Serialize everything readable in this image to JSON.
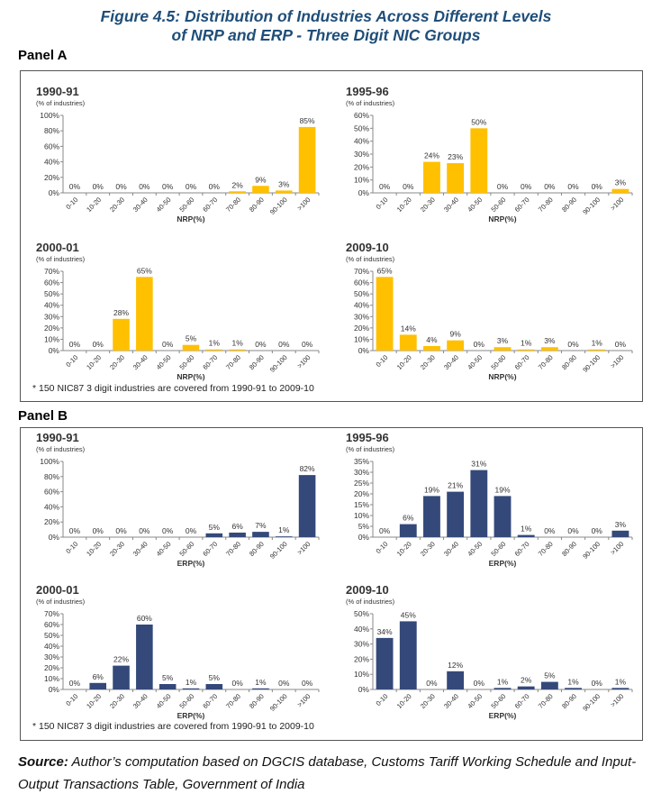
{
  "figure": {
    "title_line1": "Figure 4.5: Distribution of Industries Across Different Levels",
    "title_line2": "of NRP and ERP - Three Digit NIC Groups"
  },
  "panels": [
    {
      "label": "Panel A",
      "footnote": "* 150 NIC87 3 digit industries are covered from 1990-91 to 2009-10"
    },
    {
      "label": "Panel B",
      "footnote": "* 150 NIC87 3 digit industries are covered from 1990-91 to 2009-10"
    }
  ],
  "source": {
    "label": "Source:",
    "text": "Author’s computation based on DGCIS database, Customs Tariff Working Schedule and Input-Output Transactions Table, Government of India"
  },
  "colors": {
    "nrp_bar": "#ffc000",
    "erp_bar": "#34497a",
    "axis": "#888888"
  },
  "chart_data": [
    {
      "type": "bar",
      "panel": "A",
      "title": "1990-91",
      "subtitle": "(% of industries)",
      "xlabel": "NRP(%)",
      "categories": [
        "0-10",
        "10-20",
        "20-30",
        "30-40",
        "40-50",
        "50-60",
        "60-70",
        "70-80",
        "80-90",
        "90-100",
        ">100"
      ],
      "values": [
        0,
        0,
        0,
        0,
        0,
        0,
        0,
        2,
        9,
        3,
        85
      ],
      "data_labels": [
        "0%",
        "0%",
        "0%",
        "0%",
        "0%",
        "0%",
        "0%",
        "2%",
        "9%",
        "3%",
        "85%"
      ],
      "ylim": [
        0,
        100
      ],
      "yticks": [
        "0%",
        "20%",
        "40%",
        "60%",
        "80%",
        "100%"
      ]
    },
    {
      "type": "bar",
      "panel": "A",
      "title": "1995-96",
      "subtitle": "(% of industries)",
      "xlabel": "NRP(%)",
      "categories": [
        "0-10",
        "10-20",
        "20-30",
        "30-40",
        "40-50",
        "50-60",
        "60-70",
        "70-80",
        "80-90",
        "90-100",
        ">100"
      ],
      "values": [
        0,
        0,
        24,
        23,
        50,
        0,
        0,
        0,
        0,
        0,
        3
      ],
      "data_labels": [
        "0%",
        "0%",
        "24%",
        "23%",
        "50%",
        "0%",
        "0%",
        "0%",
        "0%",
        "0%",
        "3%"
      ],
      "ylim": [
        0,
        60
      ],
      "yticks": [
        "0%",
        "10%",
        "20%",
        "30%",
        "40%",
        "50%",
        "60%"
      ]
    },
    {
      "type": "bar",
      "panel": "A",
      "title": "2000-01",
      "subtitle": "(% of industries)",
      "xlabel": "NRP(%)",
      "categories": [
        "0-10",
        "10-20",
        "20-30",
        "30-40",
        "40-50",
        "50-60",
        "60-70",
        "70-80",
        "80-90",
        "90-100",
        ">100"
      ],
      "values": [
        0,
        0,
        28,
        65,
        0,
        5,
        1,
        1,
        0,
        0,
        0
      ],
      "data_labels": [
        "0%",
        "0%",
        "28%",
        "65%",
        "0%",
        "5%",
        "1%",
        "1%",
        "0%",
        "0%",
        "0%"
      ],
      "ylim": [
        0,
        70
      ],
      "yticks": [
        "0%",
        "10%",
        "20%",
        "30%",
        "40%",
        "50%",
        "60%",
        "70%"
      ]
    },
    {
      "type": "bar",
      "panel": "A",
      "title": "2009-10",
      "subtitle": "(% of industries)",
      "xlabel": "NRP(%)",
      "categories": [
        "0-10",
        "10-20",
        "20-30",
        "30-40",
        "40-50",
        "50-60",
        "60-70",
        "70-80",
        "80-90",
        "90-100",
        ">100"
      ],
      "values": [
        65,
        14,
        4,
        9,
        0,
        3,
        1,
        3,
        0,
        1,
        0
      ],
      "data_labels": [
        "65%",
        "14%",
        "4%",
        "9%",
        "0%",
        "3%",
        "1%",
        "3%",
        "0%",
        "1%",
        "0%"
      ],
      "ylim": [
        0,
        70
      ],
      "yticks": [
        "0%",
        "10%",
        "20%",
        "30%",
        "40%",
        "50%",
        "60%",
        "70%"
      ]
    },
    {
      "type": "bar",
      "panel": "B",
      "title": "1990-91",
      "subtitle": "(% of industries)",
      "xlabel": "ERP(%)",
      "categories": [
        "0-10",
        "10-20",
        "20-30",
        "30-40",
        "40-50",
        "50-60",
        "60-70",
        "70-80",
        "80-90",
        "90-100",
        ">100"
      ],
      "values": [
        0,
        0,
        0,
        0,
        0,
        0,
        5,
        6,
        7,
        1,
        82
      ],
      "data_labels": [
        "0%",
        "0%",
        "0%",
        "0%",
        "0%",
        "0%",
        "5%",
        "6%",
        "7%",
        "1%",
        "82%"
      ],
      "ylim": [
        0,
        100
      ],
      "yticks": [
        "0%",
        "20%",
        "40%",
        "60%",
        "80%",
        "100%"
      ]
    },
    {
      "type": "bar",
      "panel": "B",
      "title": "1995-96",
      "subtitle": "(% of industries)",
      "xlabel": "ERP(%)",
      "categories": [
        "0-10",
        "10-20",
        "20-30",
        "30-40",
        "40-50",
        "50-60",
        "60-70",
        "70-80",
        "80-90",
        "90-100",
        ">100"
      ],
      "values": [
        0,
        6,
        19,
        21,
        31,
        19,
        1,
        0,
        0,
        0,
        3
      ],
      "data_labels": [
        "0%",
        "6%",
        "19%",
        "21%",
        "31%",
        "19%",
        "1%",
        "0%",
        "0%",
        "0%",
        "3%"
      ],
      "ylim": [
        0,
        35
      ],
      "yticks": [
        "0%",
        "5%",
        "10%",
        "15%",
        "20%",
        "25%",
        "30%",
        "35%"
      ]
    },
    {
      "type": "bar",
      "panel": "B",
      "title": "2000-01",
      "subtitle": "(% of industries)",
      "xlabel": "ERP(%)",
      "categories": [
        "0-10",
        "10-20",
        "20-30",
        "30-40",
        "40-50",
        "50-60",
        "60-70",
        "70-80",
        "80-90",
        "90-100",
        ">100"
      ],
      "values": [
        0,
        6,
        22,
        60,
        5,
        1,
        5,
        0,
        1,
        0,
        0
      ],
      "data_labels": [
        "0%",
        "6%",
        "22%",
        "60%",
        "5%",
        "1%",
        "5%",
        "0%",
        "1%",
        "0%",
        "0%"
      ],
      "ylim": [
        0,
        70
      ],
      "yticks": [
        "0%",
        "10%",
        "20%",
        "30%",
        "40%",
        "50%",
        "60%",
        "70%"
      ]
    },
    {
      "type": "bar",
      "panel": "B",
      "title": "2009-10",
      "subtitle": "(% of industries)",
      "xlabel": "ERP(%)",
      "categories": [
        "0-10",
        "10-20",
        "20-30",
        "30-40",
        "40-50",
        "50-60",
        "60-70",
        "70-80",
        "80-90",
        "90-100",
        ">100"
      ],
      "values": [
        34,
        45,
        0,
        12,
        0,
        1,
        2,
        5,
        1,
        0,
        1
      ],
      "data_labels": [
        "34%",
        "45%",
        "0%",
        "12%",
        "0%",
        "1%",
        "2%",
        "5%",
        "1%",
        "0%",
        "1%"
      ],
      "ylim": [
        0,
        50
      ],
      "yticks": [
        "0%",
        "10%",
        "20%",
        "30%",
        "40%",
        "50%"
      ]
    }
  ]
}
